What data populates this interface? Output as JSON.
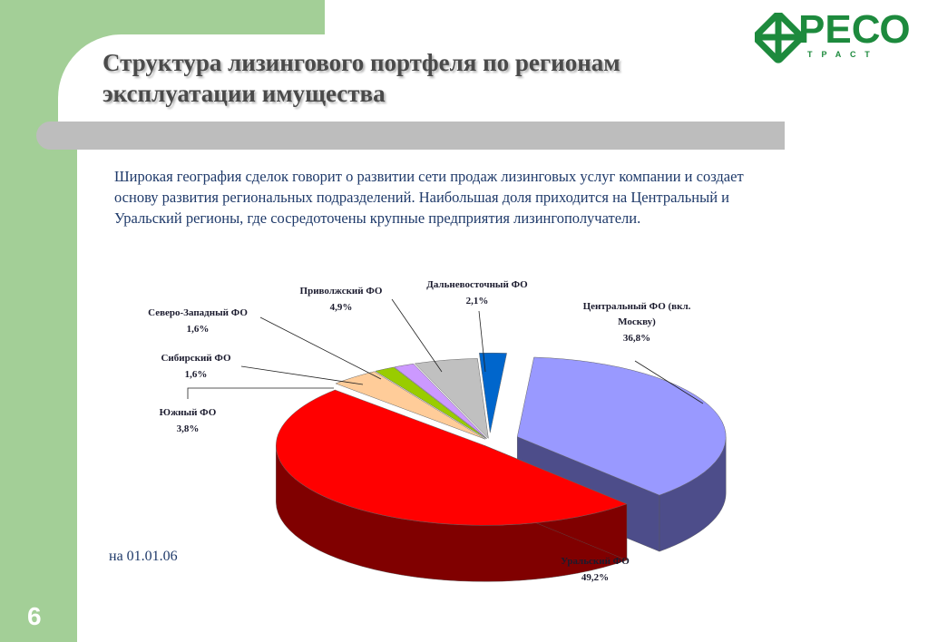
{
  "slide": {
    "title_line1": "Структура лизингового портфеля по регионам",
    "title_line2": "эксплуатации имущества",
    "description": "Широкая география сделок говорит о развитии сети продаж лизинговых услуг компании и создает основу развития региональных подразделений. Наибольшая доля приходится на Центральный и Уральский регионы, где сосредоточены крупные предприятия лизингополучатели.",
    "date": "на 01.01.06",
    "page_number": "6"
  },
  "logo": {
    "name": "РЕСО",
    "subtitle": "ТРАСТ",
    "color": "#1d8a3d"
  },
  "chart_data": {
    "type": "pie",
    "style": "3d-exploded",
    "categories": [
      "Центральный ФО (вкл. Москву)",
      "Уральский ФО",
      "Южный ФО",
      "Сибирский ФО",
      "Северо-Западный ФО",
      "Приволжский ФО",
      "Дальневосточный ФО"
    ],
    "values": [
      36.8,
      49.2,
      3.8,
      1.6,
      1.6,
      4.9,
      2.1
    ],
    "value_labels": [
      "36,8%",
      "49,2%",
      "3,8%",
      "1,6%",
      "1,6%",
      "4,9%",
      "2,1%"
    ],
    "colors": [
      "#9999ff",
      "#ff0000",
      "#ffcc99",
      "#99cc00",
      "#cc99ff",
      "#c0c0c0",
      "#0066cc"
    ],
    "side_colors": [
      "#4d4d8a",
      "#800000",
      "#8a6e53",
      "#4d6600",
      "#6e538a",
      "#6b6b6b",
      "#003366"
    ],
    "legend": "none"
  }
}
